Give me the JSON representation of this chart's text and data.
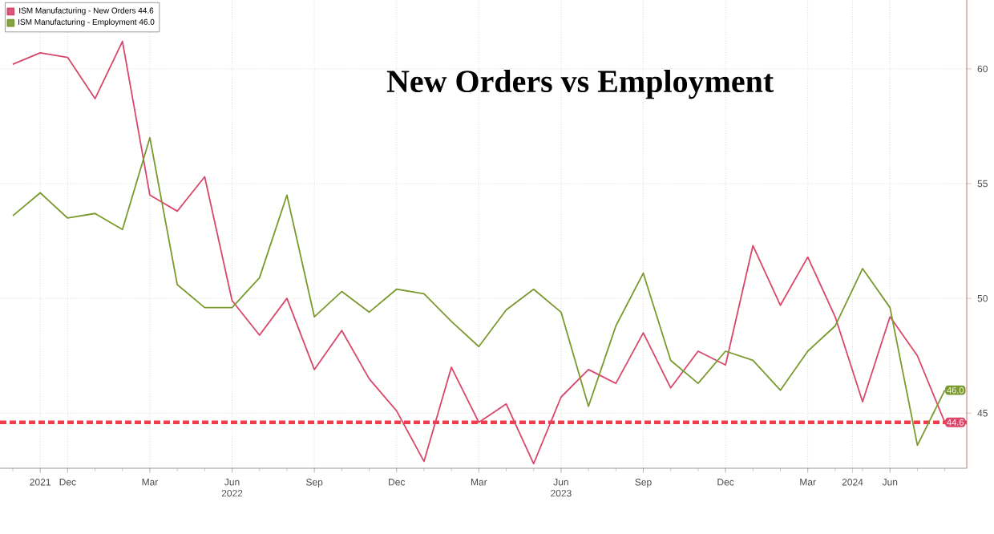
{
  "chart_data": {
    "type": "line",
    "title": "New Orders vs Employment",
    "x": [
      "2021-10",
      "2021-11",
      "2021-12",
      "2022-01",
      "2022-02",
      "2022-03",
      "2022-04",
      "2022-05",
      "2022-06",
      "2022-07",
      "2022-08",
      "2022-09",
      "2022-10",
      "2022-11",
      "2022-12",
      "2023-01",
      "2023-02",
      "2023-03",
      "2023-04",
      "2023-05",
      "2023-06",
      "2023-07",
      "2023-08",
      "2023-09",
      "2023-10",
      "2023-11",
      "2023-12",
      "2024-01",
      "2024-02",
      "2024-03",
      "2024-04",
      "2024-05",
      "2024-06",
      "2024-07",
      "2024-08"
    ],
    "series": [
      {
        "name": "ISM Manufacturing - New Orders  44.6",
        "color": "#d9476a",
        "values": [
          60.2,
          60.7,
          60.5,
          58.7,
          61.2,
          54.5,
          53.8,
          55.3,
          49.9,
          48.4,
          50.0,
          46.9,
          48.6,
          46.5,
          45.1,
          42.9,
          47.0,
          44.6,
          45.4,
          42.8,
          45.7,
          46.9,
          46.3,
          48.5,
          46.1,
          47.7,
          47.1,
          52.3,
          49.7,
          51.8,
          49.2,
          45.5,
          49.2,
          47.5,
          44.6
        ],
        "value_labels": [
          null,
          null,
          null,
          null,
          null,
          null,
          null,
          null,
          null,
          null,
          null,
          null,
          null,
          null,
          null,
          null,
          null,
          null,
          null,
          null,
          null,
          null,
          null,
          null,
          null,
          null,
          null,
          null,
          null,
          null,
          null,
          null,
          null,
          null,
          "44.6"
        ]
      },
      {
        "name": "ISM Manufacturing - Employment  46.0",
        "color": "#7a9a2e",
        "values": [
          53.6,
          54.6,
          53.5,
          53.7,
          53.0,
          57.0,
          50.6,
          49.6,
          49.6,
          50.9,
          54.5,
          49.2,
          50.3,
          49.4,
          50.4,
          50.2,
          49.0,
          47.9,
          49.5,
          50.4,
          49.4,
          45.3,
          48.8,
          51.1,
          47.3,
          46.3,
          47.7,
          47.3,
          46.0,
          47.7,
          48.8,
          51.3,
          49.6,
          43.6,
          46.0
        ],
        "value_labels": [
          null,
          null,
          null,
          null,
          null,
          null,
          null,
          null,
          null,
          null,
          null,
          null,
          null,
          null,
          null,
          null,
          null,
          null,
          null,
          null,
          null,
          null,
          null,
          null,
          null,
          null,
          null,
          null,
          null,
          null,
          null,
          null,
          null,
          null,
          "46.0"
        ]
      }
    ],
    "xlim": [
      "2021-09-17",
      "2024-08-25"
    ],
    "xticks": [
      {
        "value": "2021-11-01",
        "label": "2021"
      },
      {
        "value": "2021-12",
        "label": "Dec"
      },
      {
        "value": "2022-03",
        "label": "Mar"
      },
      {
        "value": "2022-06",
        "label": "Jun 2022"
      },
      {
        "value": "2022-09",
        "label": "Sep"
      },
      {
        "value": "2022-12",
        "label": "Dec"
      },
      {
        "value": "2023-03",
        "label": "Mar"
      },
      {
        "value": "2023-06",
        "label": "Jun 2023"
      },
      {
        "value": "2023-09",
        "label": "Sep"
      },
      {
        "value": "2023-12",
        "label": "Dec"
      },
      {
        "value": "2024-03",
        "label": "Mar"
      },
      {
        "value": "2024-04-20",
        "label": "2024"
      },
      {
        "value": "2024-06",
        "label": "Jun"
      }
    ],
    "ylim": [
      42.6,
      63
    ],
    "yticks": [
      45,
      50,
      55,
      60
    ],
    "ref_lines": [
      {
        "axis": "y",
        "value": 44.6,
        "color": "#f03c4b",
        "line_style": "dashed"
      }
    ],
    "grid": true,
    "legend": "top left",
    "marker": "none",
    "line_style": "solid"
  }
}
